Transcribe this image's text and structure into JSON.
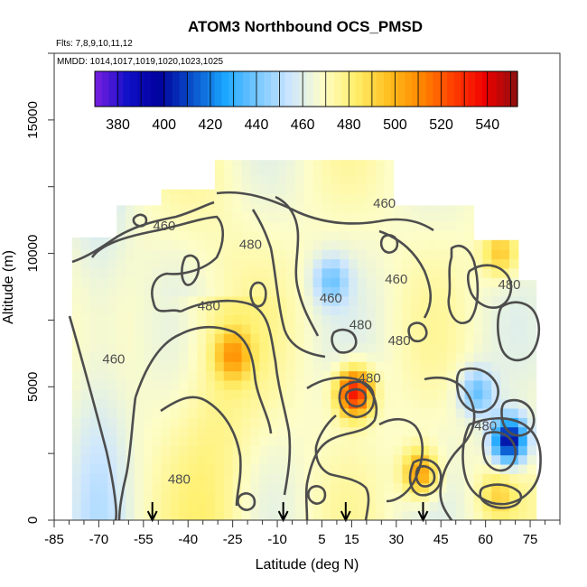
{
  "chart_data": {
    "type": "heatmap",
    "title": "ATOM3 Northbound OCS_PMSD",
    "flights_note": "Flts: 7,8,9,10,11,12",
    "dates_note": "MMDD: 1014,1017,1019,1020,1023,1025",
    "xlabel": "Latitude (deg N)",
    "ylabel": "Altitude (m)",
    "xlim": [
      -85,
      85
    ],
    "ylim": [
      0,
      17500
    ],
    "x_ticks": [
      -85,
      -70,
      -55,
      -40,
      -25,
      -10,
      5,
      15,
      30,
      45,
      60,
      75
    ],
    "y_ticks": [
      0,
      5000,
      10000,
      15000
    ],
    "colorbar": {
      "ticks": [
        380,
        400,
        420,
        440,
        460,
        480,
        500,
        520,
        540
      ],
      "range": [
        370,
        553
      ],
      "colors": [
        "#7b1fe0",
        "#1010c8",
        "#00009c",
        "#0a52cc",
        "#1aa6ff",
        "#78c8ff",
        "#cde6ff",
        "#fdfdc8",
        "#fff06e",
        "#ffc020",
        "#ff8a00",
        "#ff4000",
        "#f00000",
        "#8c1010"
      ]
    },
    "contour_levels": [
      460,
      480
    ],
    "contour_labels": [
      {
        "text": "460",
        "lat": -48,
        "alt": 11000
      },
      {
        "text": "480",
        "lat": -19,
        "alt": 10300
      },
      {
        "text": "460",
        "lat": 26,
        "alt": 11850
      },
      {
        "text": "460",
        "lat": 30,
        "alt": 9000
      },
      {
        "text": "460",
        "lat": 8,
        "alt": 8300
      },
      {
        "text": "480",
        "lat": -33,
        "alt": 8000
      },
      {
        "text": "480",
        "lat": 18,
        "alt": 7300
      },
      {
        "text": "480",
        "lat": 31,
        "alt": 6700
      },
      {
        "text": "480",
        "lat": 68,
        "alt": 8800
      },
      {
        "text": "460",
        "lat": -65,
        "alt": 6000
      },
      {
        "text": "480",
        "lat": 21,
        "alt": 5300
      },
      {
        "text": "480",
        "lat": -43,
        "alt": 1500
      },
      {
        "text": "480",
        "lat": 60,
        "alt": 3500
      }
    ],
    "profile_arrows_lat": [
      -52,
      -8,
      13,
      39
    ],
    "field_peaks": [
      {
        "lat": 16,
        "alt": 4800,
        "value": 540
      },
      {
        "lat": 38,
        "alt": 1800,
        "value": 512
      },
      {
        "lat": -25,
        "alt": 6200,
        "value": 500
      },
      {
        "lat": 65,
        "alt": 10000,
        "value": 498
      },
      {
        "lat": 64,
        "alt": 1000,
        "value": 488
      },
      {
        "lat": 68,
        "alt": 3000,
        "value": 398
      },
      {
        "lat": 57,
        "alt": 4800,
        "value": 440
      },
      {
        "lat": 8,
        "alt": 9000,
        "value": 445
      }
    ]
  }
}
